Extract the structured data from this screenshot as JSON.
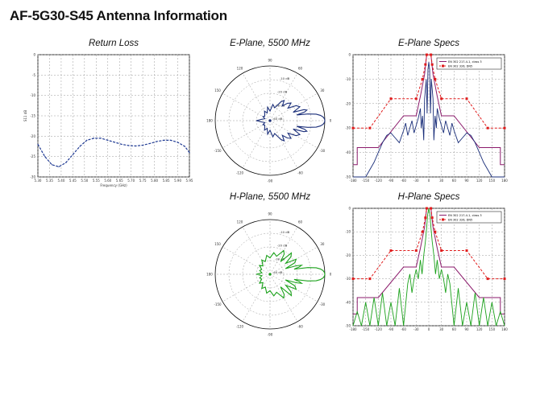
{
  "page_title": "AF-5G30-S45 Antenna Information",
  "colors": {
    "grid": "#9a9a9a",
    "return_loss": "#1f3a93",
    "e_plane": "#1b2f7a",
    "h_plane": "#1aa11a",
    "standard_line": "#8b1a6b",
    "dashed_standard": "#e01b1b"
  },
  "panels": {
    "return_loss": {
      "title": "Return Loss"
    },
    "e_plane": {
      "title": "E-Plane, 5500 MHz"
    },
    "e_specs": {
      "title": "E-Plane Specs"
    },
    "h_plane": {
      "title": "H-Plane, 5500 MHz"
    },
    "h_specs": {
      "title": "H-Plane Specs"
    }
  },
  "chart_data": [
    {
      "id": "return_loss",
      "type": "line",
      "title": "Return Loss",
      "xlabel": "Frequency (GHz)",
      "ylabel": "S11 dB",
      "xlim": [
        5.3,
        5.95
      ],
      "ylim": [
        -30,
        0
      ],
      "xticks": [
        "5.30",
        "5.35",
        "5.40",
        "5.45",
        "5.50",
        "5.55",
        "5.60",
        "5.65",
        "5.70",
        "5.75",
        "5.80",
        "5.85",
        "5.90",
        "5.95"
      ],
      "xtick_values": [
        5.3,
        5.35,
        5.4,
        5.45,
        5.5,
        5.55,
        5.6,
        5.65,
        5.7,
        5.75,
        5.8,
        5.85,
        5.9,
        5.95
      ],
      "xtick_labels": [
        "5.30",
        "",
        "5.35",
        "",
        "5.40",
        "",
        "5.45",
        "",
        "5.50",
        "",
        "5.55",
        "",
        "5.60",
        "",
        "5.65",
        "",
        "5.70",
        "",
        "5.75",
        "",
        "5.80",
        "",
        "5.85",
        "",
        "5.90",
        "",
        "5.95"
      ],
      "yticks": [
        0,
        -5,
        -10,
        -15,
        -20,
        -25,
        -30
      ],
      "ytick_labels": [
        "0",
        "-5",
        "-10",
        "-15",
        "-20",
        "-25",
        "-30"
      ],
      "grid": true,
      "x": [
        5.3,
        5.33,
        5.36,
        5.39,
        5.42,
        5.45,
        5.48,
        5.51,
        5.54,
        5.57,
        5.6,
        5.63,
        5.66,
        5.69,
        5.72,
        5.75,
        5.78,
        5.81,
        5.84,
        5.87,
        5.9,
        5.93,
        5.95
      ],
      "y": [
        -22.0,
        -25.0,
        -27.0,
        -27.5,
        -26.5,
        -24.5,
        -22.5,
        -21.0,
        -20.5,
        -20.5,
        -21.0,
        -21.5,
        -22.0,
        -22.3,
        -22.4,
        -22.2,
        -21.8,
        -21.3,
        -21.0,
        -21.0,
        -21.5,
        -22.5,
        -24.0
      ]
    },
    {
      "id": "e_plane",
      "type": "line",
      "title": "E-Plane, 5500 MHz",
      "projection": "polar",
      "rlim": [
        -40,
        0
      ],
      "ring_labels": [
        "-10 dB",
        "-20 dB",
        "-30 dB",
        "-40 dB"
      ],
      "angle_labels": [
        "0",
        "30",
        "60",
        "90",
        "120",
        "150",
        "180",
        "-150",
        "-120",
        "-90",
        "-60",
        "-30"
      ],
      "angles_deg": [
        0,
        2,
        4,
        6,
        8,
        10,
        12,
        14,
        16,
        18,
        20,
        25,
        30,
        35,
        40,
        45,
        50,
        55,
        60,
        70,
        80,
        90,
        100,
        110,
        120,
        130,
        140,
        150,
        160,
        170,
        180,
        190,
        200,
        210,
        220,
        230,
        240,
        250,
        260,
        270,
        280,
        290,
        300,
        305,
        310,
        315,
        320,
        325,
        330,
        335,
        340,
        342,
        344,
        346,
        348,
        350,
        352,
        354,
        356,
        358
      ],
      "gain_db": [
        0,
        -0.3,
        -1.2,
        -3,
        -6,
        -12,
        -20,
        -14,
        -12,
        -14,
        -22,
        -16,
        -18,
        -24,
        -20,
        -22,
        -26,
        -22,
        -24,
        -30,
        -28,
        -33,
        -30,
        -34,
        -32,
        -34,
        -35,
        -34,
        -36,
        -34,
        -30,
        -34,
        -36,
        -34,
        -35,
        -34,
        -32,
        -34,
        -30,
        -33,
        -28,
        -30,
        -24,
        -22,
        -26,
        -22,
        -20,
        -24,
        -18,
        -16,
        -22,
        -14,
        -12,
        -14,
        -20,
        -12,
        -6,
        -3,
        -1.2,
        -0.3
      ]
    },
    {
      "id": "e_specs",
      "type": "line",
      "title": "E-Plane Specs",
      "xlim": [
        -180,
        180
      ],
      "ylim": [
        -50,
        0
      ],
      "xticks": [
        -180,
        -150,
        -120,
        -90,
        -60,
        -30,
        0,
        30,
        60,
        90,
        120,
        150,
        180
      ],
      "yticks": [
        0,
        -10,
        -20,
        -30,
        -40,
        -50
      ],
      "grid": true,
      "legend": {
        "position": "top-right",
        "entries": [
          "EN 302 217-4-1, class 3",
          "EN 302 326, DN5"
        ]
      },
      "series": [
        {
          "name": "EN 302 217-4-1, class 3",
          "style": "solid",
          "x": [
            -180,
            -170,
            -170,
            -120,
            -60,
            -30,
            -20,
            -10,
            -5,
            5,
            10,
            20,
            30,
            60,
            120,
            170,
            170,
            180
          ],
          "y": [
            -45,
            -45,
            -38,
            -38,
            -25,
            -25,
            -17,
            -8,
            0,
            0,
            -8,
            -17,
            -25,
            -25,
            -38,
            -38,
            -45,
            -45
          ]
        },
        {
          "name": "EN 302 326, DN5",
          "style": "dashed",
          "x": [
            -180,
            -140,
            -90,
            -30,
            -15,
            -8,
            -5,
            5,
            8,
            15,
            30,
            90,
            140,
            180
          ],
          "y": [
            -30,
            -30,
            -18,
            -18,
            -10,
            -4,
            0,
            0,
            -4,
            -10,
            -18,
            -18,
            -30,
            -30
          ]
        },
        {
          "name": "",
          "style": "pattern",
          "x": [
            -180,
            -165,
            -150,
            -140,
            -130,
            -120,
            -110,
            -100,
            -90,
            -80,
            -70,
            -60,
            -55,
            -50,
            -45,
            -40,
            -35,
            -30,
            -25,
            -20,
            -18,
            -15,
            -12,
            -10,
            -8,
            -6,
            -4,
            -2,
            0,
            2,
            4,
            6,
            8,
            10,
            12,
            15,
            18,
            20,
            25,
            30,
            35,
            40,
            45,
            50,
            55,
            60,
            70,
            80,
            90,
            100,
            110,
            120,
            130,
            140,
            150,
            165,
            180
          ],
          "y": [
            -50,
            -50,
            -50,
            -47,
            -44,
            -40,
            -36,
            -33,
            -32,
            -34,
            -36,
            -31,
            -28,
            -33,
            -30,
            -27,
            -32,
            -29,
            -26,
            -22,
            -30,
            -25,
            -35,
            -18,
            -14,
            -10,
            -24,
            -6,
            -3,
            -6,
            -24,
            -10,
            -14,
            -18,
            -35,
            -25,
            -30,
            -22,
            -26,
            -29,
            -32,
            -27,
            -30,
            -33,
            -28,
            -31,
            -36,
            -34,
            -32,
            -33,
            -36,
            -40,
            -44,
            -47,
            -50,
            -50,
            -50
          ]
        }
      ]
    },
    {
      "id": "h_plane",
      "type": "line",
      "title": "H-Plane, 5500 MHz",
      "projection": "polar",
      "rlim": [
        -40,
        0
      ],
      "ring_labels": [
        "-10 dB",
        "-20 dB",
        "-30 dB",
        "-40 dB"
      ],
      "angle_labels": [
        "0",
        "30",
        "60",
        "90",
        "120",
        "150",
        "180",
        "-150",
        "-120",
        "-90",
        "-60",
        "-30"
      ],
      "angles_deg": [
        0,
        2,
        4,
        6,
        8,
        10,
        12,
        14,
        16,
        18,
        20,
        25,
        30,
        35,
        40,
        45,
        50,
        55,
        60,
        70,
        80,
        90,
        100,
        110,
        120,
        130,
        140,
        150,
        160,
        170,
        180,
        190,
        200,
        210,
        220,
        230,
        240,
        250,
        260,
        270,
        280,
        290,
        300,
        305,
        310,
        315,
        320,
        325,
        330,
        335,
        340,
        342,
        344,
        346,
        348,
        350,
        352,
        354,
        356,
        358
      ],
      "gain_db": [
        0,
        -0.3,
        -1.2,
        -3,
        -6,
        -12,
        -22,
        -18,
        -16,
        -20,
        -28,
        -20,
        -18,
        -26,
        -20,
        -18,
        -28,
        -22,
        -20,
        -26,
        -24,
        -28,
        -26,
        -30,
        -28,
        -32,
        -30,
        -33,
        -32,
        -34,
        -30,
        -34,
        -32,
        -33,
        -30,
        -32,
        -28,
        -30,
        -26,
        -28,
        -24,
        -26,
        -20,
        -22,
        -28,
        -18,
        -20,
        -26,
        -18,
        -20,
        -28,
        -20,
        -16,
        -18,
        -22,
        -12,
        -6,
        -3,
        -1.2,
        -0.3
      ]
    },
    {
      "id": "h_specs",
      "type": "line",
      "title": "H-Plane Specs",
      "xlim": [
        -180,
        180
      ],
      "ylim": [
        -50,
        0
      ],
      "xticks": [
        -180,
        -150,
        -120,
        -90,
        -60,
        -30,
        0,
        30,
        60,
        90,
        120,
        150,
        180
      ],
      "yticks": [
        0,
        -10,
        -20,
        -30,
        -40,
        -50
      ],
      "grid": true,
      "legend": {
        "position": "top-right",
        "entries": [
          "EN 302 217-4-1, class 3",
          "EN 302 326, DN5"
        ]
      },
      "series": [
        {
          "name": "EN 302 217-4-1, class 3",
          "style": "solid",
          "x": [
            -180,
            -170,
            -170,
            -120,
            -60,
            -30,
            -20,
            -10,
            -5,
            5,
            10,
            20,
            30,
            60,
            120,
            170,
            170,
            180
          ],
          "y": [
            -45,
            -45,
            -38,
            -38,
            -25,
            -25,
            -17,
            -8,
            0,
            0,
            -8,
            -17,
            -25,
            -25,
            -38,
            -38,
            -45,
            -45
          ]
        },
        {
          "name": "EN 302 326, DN5",
          "style": "dashed",
          "x": [
            -180,
            -140,
            -90,
            -30,
            -15,
            -8,
            -5,
            5,
            8,
            15,
            30,
            90,
            140,
            180
          ],
          "y": [
            -30,
            -30,
            -18,
            -18,
            -10,
            -4,
            0,
            0,
            -4,
            -10,
            -18,
            -18,
            -30,
            -30
          ]
        },
        {
          "name": "",
          "style": "pattern",
          "x": [
            -180,
            -170,
            -160,
            -150,
            -140,
            -130,
            -120,
            -110,
            -100,
            -90,
            -80,
            -70,
            -60,
            -50,
            -45,
            -40,
            -35,
            -30,
            -25,
            -20,
            -16,
            -12,
            -8,
            -5,
            -3,
            0,
            3,
            5,
            8,
            12,
            16,
            20,
            25,
            30,
            35,
            40,
            45,
            50,
            60,
            70,
            80,
            90,
            100,
            110,
            120,
            130,
            140,
            150,
            160,
            170,
            180
          ],
          "y": [
            -50,
            -44,
            -50,
            -40,
            -50,
            -38,
            -50,
            -36,
            -50,
            -40,
            -50,
            -34,
            -50,
            -32,
            -28,
            -36,
            -30,
            -26,
            -30,
            -22,
            -28,
            -20,
            -14,
            -8,
            -3,
            0,
            -3,
            -8,
            -14,
            -20,
            -28,
            -22,
            -30,
            -26,
            -30,
            -36,
            -28,
            -32,
            -50,
            -34,
            -50,
            -40,
            -50,
            -36,
            -50,
            -38,
            -50,
            -40,
            -50,
            -44,
            -50
          ]
        }
      ]
    }
  ]
}
